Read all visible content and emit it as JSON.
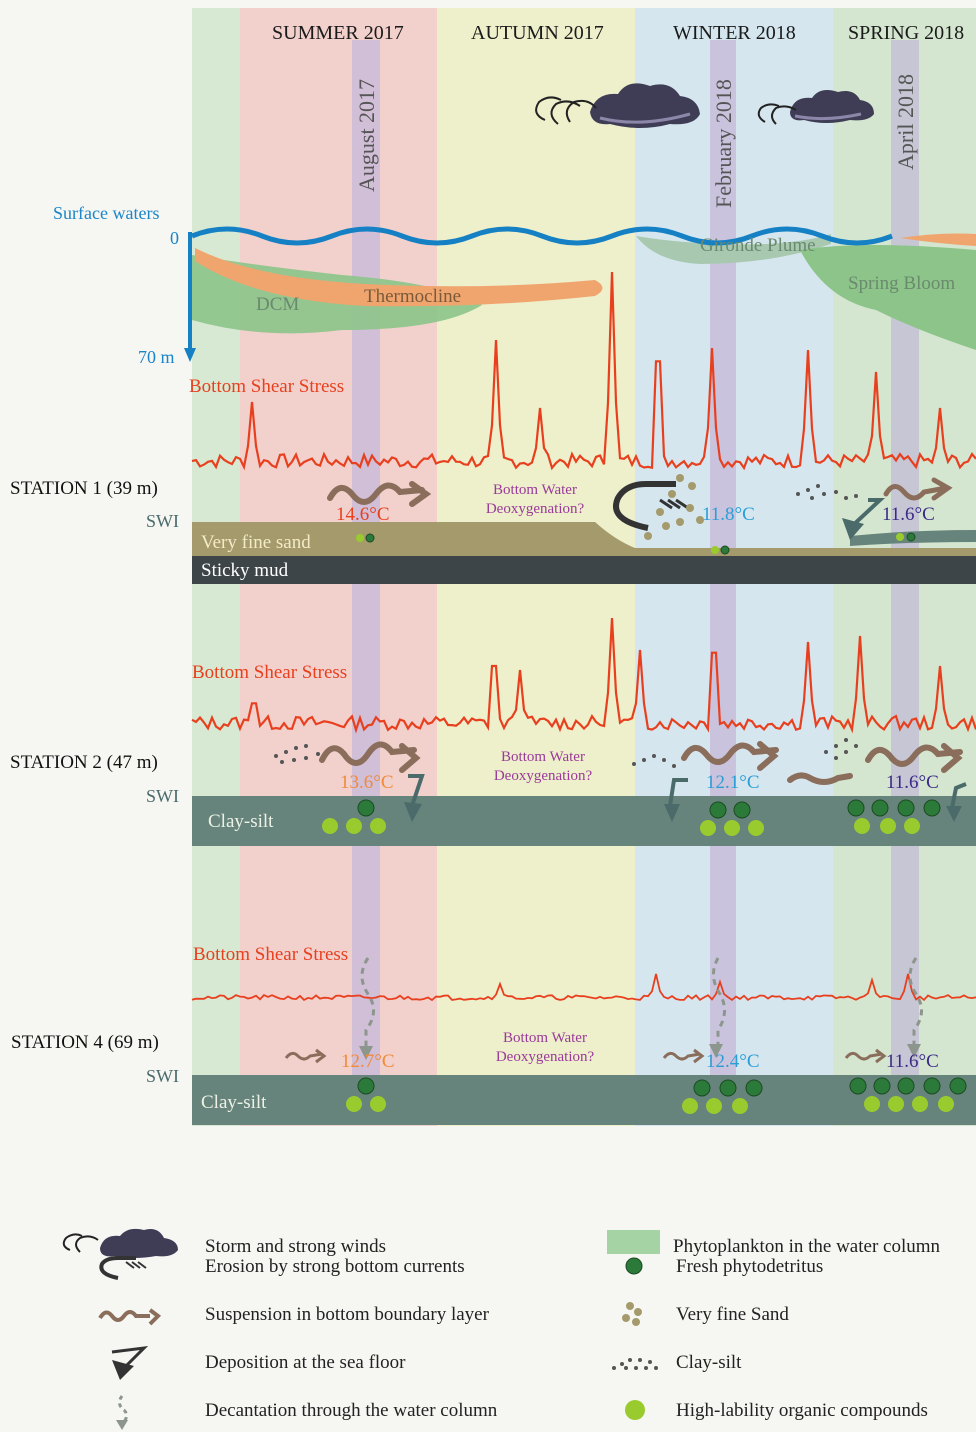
{
  "seasons": [
    "SUMMER 2017",
    "AUTUMN 2017",
    "WINTER 2018",
    "SPRING 2018"
  ],
  "months": [
    "August 2017",
    "February 2018",
    "April 2018"
  ],
  "water_column": {
    "surface_label": "Surface waters",
    "depth_top": "0",
    "depth_bottom": "70 m",
    "dcm": "DCM",
    "thermocline": "Thermocline",
    "gironde_plume": "Gironde Plume",
    "spring_bloom": "Spring Bloom"
  },
  "stations": [
    {
      "name": "STATION 1 (39 m)",
      "swi": "SWI",
      "shear_label": "Bottom Shear Stress",
      "deox": [
        "Bottom Water",
        "Deoxygenation?"
      ],
      "temps": [
        "14.6°C",
        "11.8°C",
        "11.6°C"
      ],
      "sediment_top": "Very fine sand",
      "sediment_bottom": "Sticky mud"
    },
    {
      "name": "STATION 2 (47 m)",
      "swi": "SWI",
      "shear_label": "Bottom Shear Stress",
      "deox": [
        "Bottom Water",
        "Deoxygenation?"
      ],
      "temps": [
        "13.6°C",
        "12.1°C",
        "11.6°C"
      ],
      "sediment": "Clay-silt"
    },
    {
      "name": "STATION 4 (69 m)",
      "swi": "SWI",
      "shear_label": "Bottom Shear Stress",
      "deox": [
        "Bottom Water",
        "Deoxygenation?"
      ],
      "temps": [
        "12.7°C",
        "12.4°C",
        "11.6°C"
      ],
      "sediment": "Clay-silt"
    }
  ],
  "legend": {
    "left": [
      {
        "icon": "storm-cloud-icon",
        "label": "Storm and strong winds"
      },
      {
        "icon": "erosion-arrow-icon",
        "label": "Erosion by strong bottom currents"
      },
      {
        "icon": "wavy-arrow-icon",
        "label": "Suspension in bottom boundary layer"
      },
      {
        "icon": "deposition-arrow-icon",
        "label": "Deposition at the sea floor"
      },
      {
        "icon": "dashed-arrow-icon",
        "label": "Decantation through the water column"
      }
    ],
    "right": [
      {
        "icon": "phytoplankton-swatch-icon",
        "label": "Phytoplankton in the water column"
      },
      {
        "icon": "phytodetritus-star-icon",
        "label": "Fresh phytodetritus"
      },
      {
        "icon": "sand-dots-icon",
        "label": "Very fine Sand"
      },
      {
        "icon": "clay-dots-icon",
        "label": "Clay-silt"
      },
      {
        "icon": "organic-circle-icon",
        "label": "High-lability organic compounds"
      }
    ]
  },
  "colors": {
    "summer": "#f2d0cc",
    "autumn": "#eeefcb",
    "winter": "#d5e6ef",
    "spring": "#d4e6cf",
    "month_band": "#c9b9d7",
    "shear": "#e8401f",
    "sediment_dark": "#66847c",
    "sand": "#a49a6b",
    "mud": "#3e4548",
    "temp_summer": "#f08a3c",
    "temp_winter": "#2a9fd6",
    "temp_spring": "#3a2a86",
    "organic": "#9acb2e",
    "detritus": "#2c7a3a"
  }
}
